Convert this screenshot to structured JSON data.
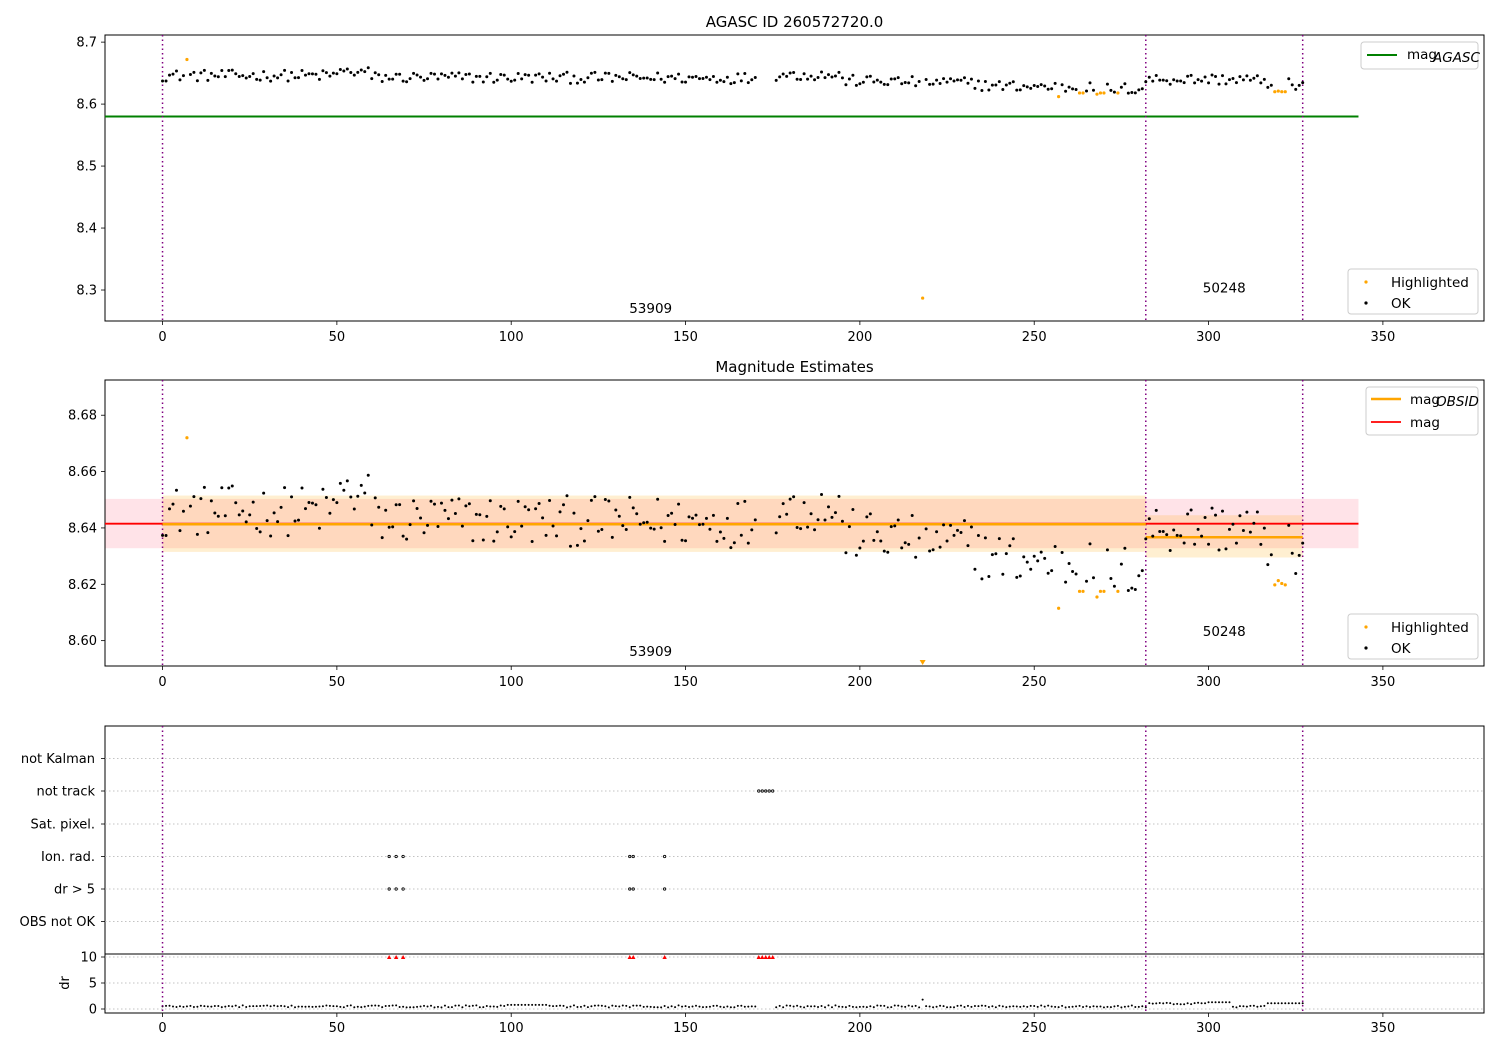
{
  "chart_data": [
    {
      "type": "scatter",
      "title": "AGASC ID 260572720.0",
      "xlim": [
        -16.5,
        379
      ],
      "ylim": [
        8.25,
        8.7115
      ],
      "xticks": [
        0,
        50,
        100,
        150,
        200,
        250,
        300,
        350
      ],
      "yticks": [
        8.3,
        8.4,
        8.5,
        8.6,
        8.7
      ],
      "vlines": [
        0,
        282,
        327
      ],
      "hlines": [
        {
          "name": "mag$_{AGASC}$",
          "label": "mag",
          "sub": "AGASC",
          "y": 8.58,
          "x": [
            -16.5,
            343
          ],
          "color": "#008000"
        }
      ],
      "annotations": [
        {
          "text": "53909",
          "x": 140,
          "y": 8.263
        },
        {
          "text": "50248",
          "x": 304.5,
          "y": 8.296
        }
      ],
      "series": [
        {
          "name": "Highlighted",
          "color": "#ffa500",
          "x": [
            7,
            218,
            257,
            263,
            264,
            268,
            269,
            270,
            274,
            319,
            320,
            321,
            322
          ],
          "y": [
            8.672,
            8.287,
            8.612,
            8.618,
            8.618,
            8.616,
            8.618,
            8.618,
            8.618,
            8.62,
            8.621,
            8.62,
            8.62
          ]
        },
        {
          "name": "OK",
          "color": "#000000"
        }
      ],
      "legend_line": "top-right",
      "legend_points": "bottom-right"
    },
    {
      "type": "scatter",
      "title": "Magnitude Estimates",
      "xlim": [
        -16.5,
        379
      ],
      "ylim": [
        8.591,
        8.6925
      ],
      "xticks": [
        0,
        50,
        100,
        150,
        200,
        250,
        300,
        350
      ],
      "yticks": [
        8.6,
        8.62,
        8.64,
        8.66,
        8.68
      ],
      "vlines": [
        0,
        282,
        327
      ],
      "lines": [
        {
          "name": "mag$_{OBSID}$",
          "label": "mag",
          "sub": "OBSID",
          "color": "#ffa500",
          "segments": [
            {
              "x": [
                0,
                282
              ],
              "y": 8.6413,
              "band": [
                8.6315,
                8.6515
              ]
            },
            {
              "x": [
                282,
                327
              ],
              "y": 8.6367,
              "band": [
                8.6295,
                8.6445
              ]
            }
          ]
        },
        {
          "name": "mag",
          "label": "mag",
          "color": "#ff0000",
          "x": [
            -16.5,
            343
          ],
          "y": 8.6415,
          "band": [
            8.6328,
            8.6503
          ]
        }
      ],
      "annotations": [
        {
          "text": "53909",
          "x": 140,
          "y": 8.5945
        },
        {
          "text": "50248",
          "x": 304.5,
          "y": 8.6017
        }
      ],
      "series": [
        {
          "name": "Highlighted",
          "color": "#ffa500",
          "x": [
            7,
            257,
            263,
            264,
            268,
            269,
            270,
            274,
            319,
            320,
            321,
            322
          ],
          "y": [
            8.672,
            8.6115,
            8.6175,
            8.6175,
            8.6155,
            8.6175,
            8.6175,
            8.6175,
            8.6198,
            8.6213,
            8.6203,
            8.6198
          ]
        },
        {
          "name": "OK",
          "color": "#000000"
        }
      ],
      "legend_line": "top-right",
      "legend_points": "bottom-right"
    },
    {
      "type": "scatter",
      "xlim": [
        -16.5,
        379
      ],
      "xticks": [
        0,
        50,
        100,
        150,
        200,
        250,
        300,
        350
      ],
      "vlines": [
        0,
        282,
        327
      ],
      "flag_categories": [
        "OBS not OK",
        "dr > 5",
        "Ion. rad.",
        "Sat. pixel.",
        "not track",
        "not Kalman"
      ],
      "flag_x": {
        "dr > 5": [
          65,
          67,
          69,
          134,
          135,
          144
        ],
        "Ion. rad.": [
          65,
          67,
          69,
          134,
          135,
          144
        ],
        "not track": [
          171,
          172,
          173,
          174,
          175
        ]
      },
      "dr_yticks": [
        0,
        5,
        10
      ],
      "dr_ylabel": "dr",
      "dr_ylim": [
        -1,
        10.5
      ],
      "dr_high_x": [
        65,
        67,
        69,
        134,
        135,
        144,
        171,
        172,
        173,
        174,
        175
      ],
      "dr_high_color": "#ff0000"
    }
  ]
}
